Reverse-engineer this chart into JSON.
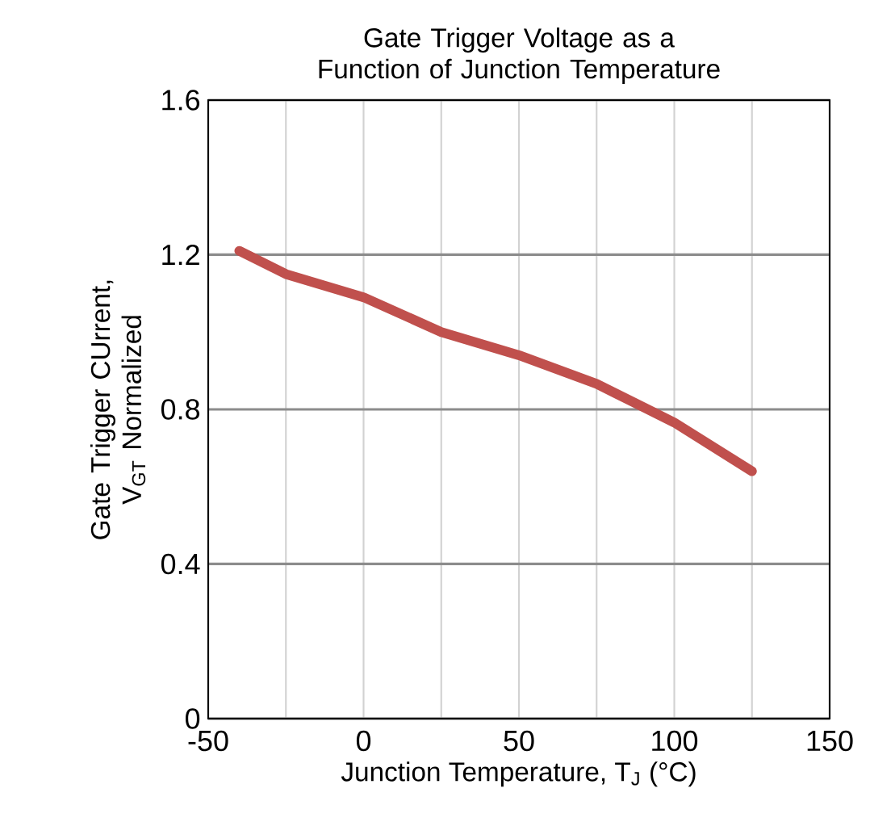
{
  "chart_data": {
    "type": "line",
    "title": "Gate Trigger Voltage as a Function of Junction Temperature",
    "xlabel": "Junction Temperature, T$_{J}$ (°C)",
    "ylabel": "Gate Trigger CUrrent, V$_{GT}$ Normalized",
    "x": [
      -40,
      -25,
      0,
      25,
      50,
      75,
      100,
      125
    ],
    "series": [
      {
        "color": "#c0504d",
        "values": [
          1.21,
          1.15,
          1.09,
          1.0,
          0.94,
          0.866,
          0.766,
          0.64
        ]
      }
    ],
    "xlim": [
      -50,
      150
    ],
    "xticks": [
      -50,
      {
        "value": -25,
        "label": null
      },
      0,
      {
        "value": 25,
        "label": null
      },
      50,
      {
        "value": 75,
        "label": null
      },
      100,
      {
        "value": 125,
        "label": null
      },
      150
    ],
    "ylim": [
      0,
      1.6
    ],
    "yticks": [
      {
        "value": 0,
        "label": "0"
      },
      0.4,
      0.8,
      1.2,
      1.6
    ],
    "grid": true,
    "marker": "none",
    "line_style": "solid"
  }
}
